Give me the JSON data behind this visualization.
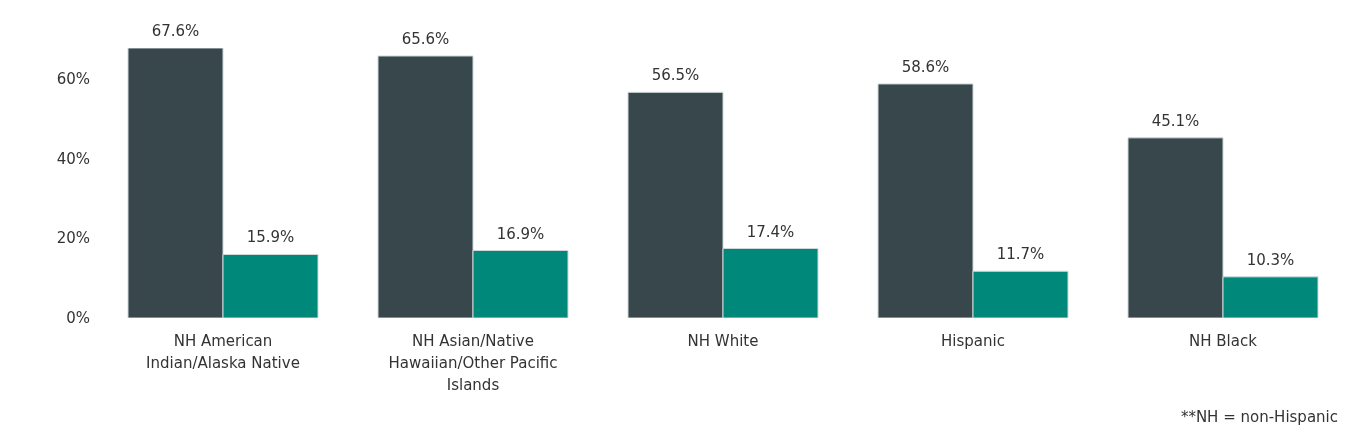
{
  "chart_data": {
    "type": "bar",
    "categories": [
      "NH American Indian/Alaska Native",
      "NH Asian/Native Hawaiian/Other Pacific Islands",
      "NH White",
      "Hispanic",
      "NH Black"
    ],
    "series": [
      {
        "color": "#37474b",
        "values": [
          67.6,
          65.6,
          56.5,
          58.6,
          45.1
        ],
        "value_labels": [
          "67.6%",
          "65.6%",
          "56.5%",
          "58.6%",
          "45.1%"
        ]
      },
      {
        "color": "#00897b",
        "values": [
          15.9,
          16.9,
          17.4,
          11.7,
          10.3
        ],
        "value_labels": [
          "15.9%",
          "16.9%",
          "17.4%",
          "11.7%",
          "10.3%"
        ]
      }
    ],
    "ylim": [
      0,
      67.6
    ],
    "yticks": [
      {
        "value": 0,
        "label": "0%"
      },
      {
        "value": 20,
        "label": "20%"
      },
      {
        "value": 40,
        "label": "40%"
      },
      {
        "value": 60,
        "label": "60%"
      }
    ],
    "grid": false,
    "legend": false,
    "annotations": [
      "**NH = non-Hispanic"
    ]
  }
}
